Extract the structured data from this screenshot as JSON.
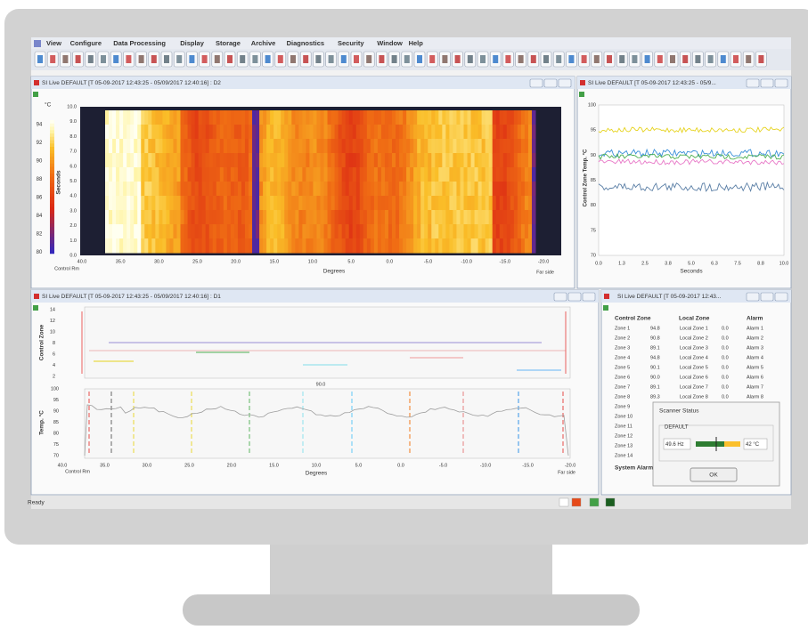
{
  "menu": [
    "View",
    "Configure",
    "Data Processing",
    "Display",
    "Storage",
    "Archive",
    "Diagnostics",
    "Security",
    "Window",
    "Help"
  ],
  "windows": {
    "heatmap": {
      "title": "SI Live DEFAULT [T 05-09-2017 12:43:25 - 05/09/2017 12:40:16] : D2",
      "scale_unit": "°C",
      "scale_ticks": [
        "94",
        "92",
        "90",
        "88",
        "86",
        "84",
        "82",
        "80"
      ],
      "y_label": "Seconds",
      "y_ticks": [
        "10.0",
        "9.0",
        "8.0",
        "7.0",
        "6.0",
        "5.0",
        "4.0",
        "3.0",
        "2.0",
        "1.0",
        "0.0"
      ],
      "x_label": "Degrees",
      "x_ticks": [
        "40.0",
        "35.0",
        "30.0",
        "25.0",
        "20.0",
        "15.0",
        "10.0",
        "5.0",
        "0.0",
        "-5.0",
        "-10.0",
        "-15.0",
        "-20.0"
      ],
      "left_label": "Control Rm",
      "right_label": "Far side"
    },
    "trend": {
      "title": "SI Live DEFAULT [T 05-09-2017 12:43:25 - 05/9...",
      "y_label": "Control Zone Temp. °C",
      "y_ticks": [
        "100",
        "95",
        "90",
        "85",
        "80",
        "75",
        "70"
      ],
      "x_label": "Seconds",
      "x_ticks": [
        "0.0",
        "1.3",
        "2.5",
        "3.8",
        "5.0",
        "6.3",
        "7.5",
        "8.8",
        "10.0"
      ]
    },
    "profile": {
      "title": "SI Live DEFAULT [T 05-09-2017 12:43:25 - 05/09/2017 12:40:16] : D1",
      "zone_label": "Control Zone",
      "zone_ticks": [
        "14",
        "12",
        "10",
        "8",
        "6",
        "4",
        "2"
      ],
      "temp_label": "Temp. °C",
      "temp_ticks": [
        "100",
        "95",
        "90",
        "85",
        "80",
        "75",
        "70"
      ],
      "x_label": "Degrees",
      "x_ticks": [
        "40.0",
        "35.0",
        "30.0",
        "25.0",
        "20.0",
        "15.0",
        "10.0",
        "5.0",
        "0.0",
        "-5.0",
        "-10.0",
        "-15.0",
        "-20.0"
      ],
      "left_label": "Control Rm",
      "right_label": "Far side",
      "marker": "90.0"
    },
    "zones": {
      "title": "SI Live DEFAULT [T 05-09-2017 12:43...",
      "headers": [
        "Control Zone",
        "Local Zone",
        "Alarm"
      ],
      "rows": [
        [
          "Zone 1",
          "94.8",
          "Local Zone 1",
          "0.0",
          "Alarm 1"
        ],
        [
          "Zone 2",
          "90.8",
          "Local Zone 2",
          "0.0",
          "Alarm 2"
        ],
        [
          "Zone 3",
          "89.1",
          "Local Zone 3",
          "0.0",
          "Alarm 3"
        ],
        [
          "Zone 4",
          "94.8",
          "Local Zone 4",
          "0.0",
          "Alarm 4"
        ],
        [
          "Zone 5",
          "90.1",
          "Local Zone 5",
          "0.0",
          "Alarm 5"
        ],
        [
          "Zone 6",
          "90.0",
          "Local Zone 6",
          "0.0",
          "Alarm 6"
        ],
        [
          "Zone 7",
          "89.1",
          "Local Zone 7",
          "0.0",
          "Alarm 7"
        ],
        [
          "Zone 8",
          "89.3",
          "Local Zone 8",
          "0.0",
          "Alarm 8"
        ],
        [
          "Zone 9"
        ],
        [
          "Zone 10"
        ],
        [
          "Zone 11"
        ],
        [
          "Zone 12"
        ],
        [
          "Zone 13"
        ],
        [
          "Zone 14"
        ]
      ],
      "footer": "System Alarm"
    }
  },
  "dialog": {
    "title": "Scanner Status",
    "group": "DEFAULT",
    "frequency": "49.6 Hz",
    "temperature": "42 °C",
    "button": "OK"
  },
  "status": "Ready"
}
